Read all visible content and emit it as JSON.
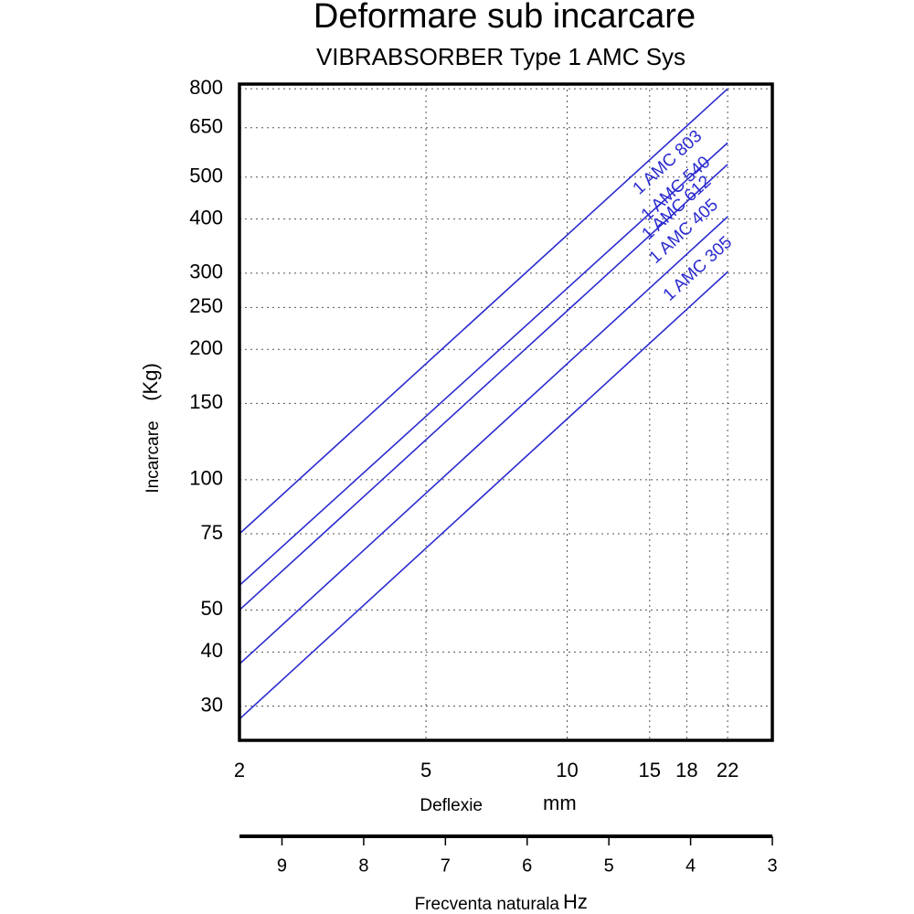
{
  "chart_data": {
    "type": "line",
    "title": "Deformare sub incarcare",
    "subtitle": "VIBRABSORBER Type 1 AMC Sys",
    "x_label": "Deflexie",
    "x_unit": "mm",
    "y_label": "Incarcare",
    "y_unit": "(Kg)",
    "x": [
      2,
      22
    ],
    "series": [
      {
        "name": "1 AMC 803",
        "color": "#2b2bd0",
        "values": [
          75,
          800
        ]
      },
      {
        "name": "1 AMC 612",
        "color": "#2b2bd0",
        "values": [
          57,
          600
        ]
      },
      {
        "name": "1 AMC 540",
        "color": "#2b2bd0",
        "values": [
          50,
          535
        ]
      },
      {
        "name": "1 AMC 405",
        "color": "#2b2bd0",
        "values": [
          37.5,
          405
        ]
      },
      {
        "name": "1 AMC 305",
        "color": "#2b2bd0",
        "values": [
          28,
          302
        ]
      }
    ],
    "xlim": [
      2,
      27.4
    ],
    "ylim": [
      25,
      820
    ],
    "xticks": [
      2,
      5,
      10,
      15,
      18,
      22
    ],
    "yticks": [
      30,
      40,
      50,
      75,
      100,
      150,
      200,
      250,
      300,
      400,
      500,
      650,
      800
    ],
    "log_x": true,
    "log_y": true,
    "grid": true,
    "secondary_x": {
      "label": "Frecventa naturala",
      "unit": "Hz",
      "xlim": [
        9.52,
        3
      ],
      "xticks": [
        9,
        8,
        7,
        6,
        5,
        4,
        3
      ]
    }
  }
}
